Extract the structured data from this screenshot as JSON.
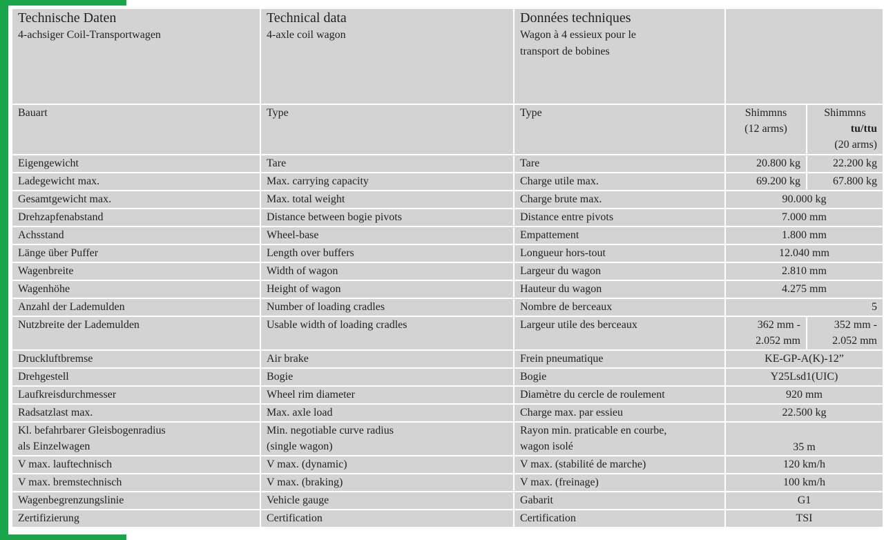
{
  "header": {
    "de_title": "Technische Daten",
    "de_sub": "4-achsiger Coil-Transportwagen",
    "en_title": "Technical data",
    "en_sub": "4-axle coil wagon",
    "fr_title": "Données techniques",
    "fr_sub1": "Wagon à 4 essieux pour le",
    "fr_sub2": "transport de bobines"
  },
  "type_row": {
    "de": "Bauart",
    "en": "Type",
    "fr": "Type",
    "v1_line1": "Shimmns",
    "v1_line2": "(12 arms)",
    "v2_line1": "Shimmns",
    "v2_line2": "tu/ttu",
    "v2_line3": "(20 arms)"
  },
  "rows": [
    {
      "de": "Eigengewicht",
      "en": "Tare",
      "fr": "Tare",
      "v1": "20.800 kg",
      "v2": "22.200 kg"
    },
    {
      "de": "Ladegewicht max.",
      "en": "Max. carrying capacity",
      "fr": "Charge utile max.",
      "v1": "69.200 kg",
      "v2": "67.800 kg"
    },
    {
      "de": "Gesamtgewicht max.",
      "en": "Max. total weight",
      "fr": "Charge brute max.",
      "v": "90.000 kg"
    },
    {
      "de": "Drehzapfenabstand",
      "en": "Distance between bogie pivots",
      "fr": "Distance entre pivots",
      "v": "7.000 mm"
    },
    {
      "de": "Achsstand",
      "en": "Wheel-base",
      "fr": "Empattement",
      "v": "1.800 mm"
    },
    {
      "de": "Länge über Puffer",
      "en": "Length over buffers",
      "fr": "Longueur hors-tout",
      "v": "12.040 mm"
    },
    {
      "de": "Wagenbreite",
      "en": "Width of wagon",
      "fr": "Largeur du wagon",
      "v": "2.810 mm"
    },
    {
      "de": "Wagenhöhe",
      "en": "Height of wagon",
      "fr": "Hauteur du wagon",
      "v": "4.275 mm"
    },
    {
      "de": "Anzahl der Lademulden",
      "en": "Number of loading cradles",
      "fr": "Nombre de berceaux",
      "v": "5"
    },
    {
      "de": "Nutzbreite der Lademulden",
      "en": "Usable width of loading cradles",
      "fr": "Largeur utile des berceaux",
      "v1a": "362 mm -",
      "v1b": "2.052 mm",
      "v2a": "352 mm -",
      "v2b": "2.052 mm"
    },
    {
      "de": "Druckluftbremse",
      "en": "Air brake",
      "fr": "Frein pneumatique",
      "v": "KE-GP-A(K)-12”"
    },
    {
      "de": "Drehgestell",
      "en": "Bogie",
      "fr": "Bogie",
      "v": "Y25Lsd1(UIC)"
    },
    {
      "de": "Laufkreisdurchmesser",
      "en": "Wheel rim diameter",
      "fr": "Diamètre du cercle de roulement",
      "v": "920 mm"
    },
    {
      "de": "Radsatzlast max.",
      "en": "Max. axle load",
      "fr": "Charge max. par essieu",
      "v": "22.500 kg"
    },
    {
      "de1": "Kl. befahrbarer Gleisbogenradius",
      "de2": "als Einzelwagen",
      "en1": "Min. negotiable curve radius",
      "en2": "(single wagon)",
      "fr1": "Rayon min. praticable en courbe,",
      "fr2": "wagon isolé",
      "v": "35 m"
    },
    {
      "de": "V max. lauftechnisch",
      "en": "V max. (dynamic)",
      "fr": "V max. (stabilité de marche)",
      "v": "120 km/h"
    },
    {
      "de": "V max. bremstechnisch",
      "en": "V max. (braking)",
      "fr": "V max. (freinage)",
      "v": "100 km/h"
    },
    {
      "de": "Wagenbegrenzungslinie",
      "en": "Vehicle gauge",
      "fr": "Gabarit",
      "v": "G1"
    },
    {
      "de": "Zertifizierung",
      "en": "Certification",
      "fr": "Certification",
      "v": "TSI"
    }
  ],
  "colors": {
    "accent": "#1aa54a",
    "cell": "#d3d3d3",
    "grid": "#ffffff"
  }
}
